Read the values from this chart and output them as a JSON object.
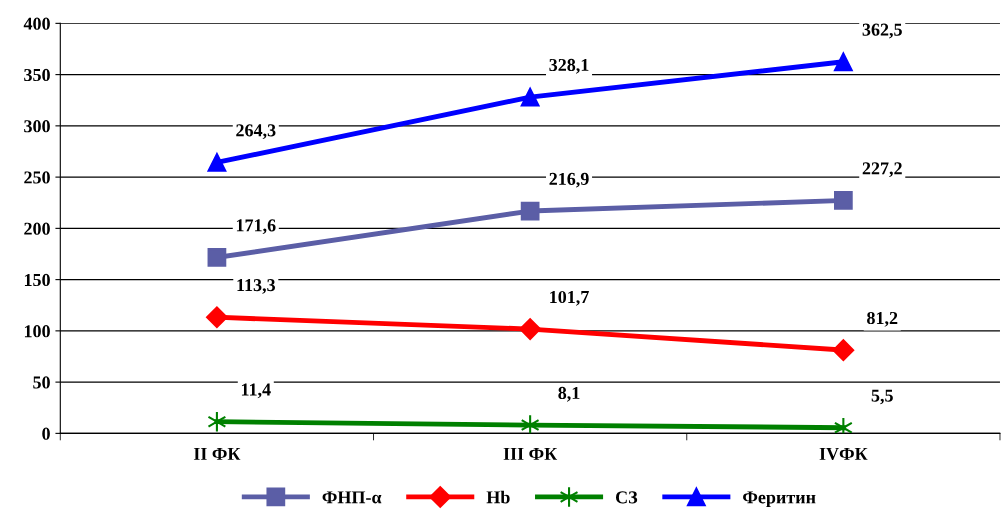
{
  "chart_data": {
    "type": "line",
    "categories": [
      "II ФК",
      "III ФК",
      "IVФК"
    ],
    "series": [
      {
        "name": "ФНП-α",
        "color": "#5b5ea6",
        "marker": "square",
        "values": [
          171.6,
          216.9,
          227.2
        ],
        "value_labels": [
          "171,6",
          "216,9",
          "227,2"
        ]
      },
      {
        "name": "Hb",
        "color": "#ff0000",
        "marker": "diamond",
        "values": [
          113.3,
          101.7,
          81.2
        ],
        "value_labels": [
          "113,3",
          "101,7",
          "81,2"
        ]
      },
      {
        "name": "СЗ",
        "color": "#008000",
        "marker": "cross",
        "values": [
          11.4,
          8.1,
          5.5
        ],
        "value_labels": [
          "11,4",
          "8,1",
          "5,5"
        ]
      },
      {
        "name": "Феритин",
        "color": "#0000ff",
        "marker": "triangle",
        "values": [
          264.3,
          328.1,
          362.5
        ],
        "value_labels": [
          "264,3",
          "328,1",
          "362,5"
        ]
      }
    ],
    "ylim": [
      0,
      400
    ],
    "yticks": [
      0,
      50,
      100,
      150,
      200,
      250,
      300,
      350,
      400
    ],
    "grid": "y",
    "legend": "bottom"
  }
}
